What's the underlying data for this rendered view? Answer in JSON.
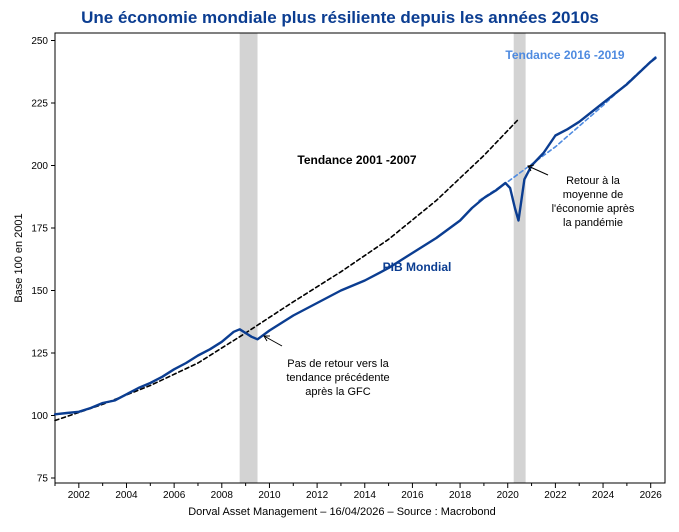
{
  "chart_data": {
    "type": "line",
    "title": "Une économie mondiale plus résiliente depuis les années 2010s",
    "xlabel": "",
    "ylabel": "Base 100 en 2001",
    "xlim": [
      2001,
      2026.6
    ],
    "ylim": [
      73,
      253
    ],
    "yticks": [
      75,
      100,
      125,
      150,
      175,
      200,
      225,
      250
    ],
    "xticks": [
      2002,
      2004,
      2006,
      2008,
      2010,
      2012,
      2014,
      2016,
      2018,
      2020,
      2022,
      2024,
      2026
    ],
    "shaded_periods": [
      [
        2008.75,
        2009.5
      ],
      [
        2020.25,
        2020.75
      ]
    ],
    "series": [
      {
        "name": "PIB Mondial",
        "color": "#0b3d91",
        "style": "solid",
        "x": [
          2001,
          2001.5,
          2002,
          2002.5,
          2003,
          2003.5,
          2004,
          2004.5,
          2005,
          2005.5,
          2006,
          2006.5,
          2007,
          2007.5,
          2008,
          2008.5,
          2008.75,
          2009,
          2009.25,
          2009.5,
          2010,
          2010.5,
          2011,
          2012,
          2013,
          2014,
          2015,
          2016,
          2017,
          2018,
          2018.5,
          2019,
          2019.5,
          2019.9,
          2020.1,
          2020.3,
          2020.45,
          2020.7,
          2021,
          2021.5,
          2022,
          2022.5,
          2023,
          2024,
          2025,
          2026,
          2026.2
        ],
        "values": [
          100.5,
          101,
          101.5,
          103,
          105,
          106,
          108.5,
          111,
          113,
          115.5,
          118.5,
          121,
          124,
          126.5,
          129.5,
          133.5,
          134.5,
          133,
          131.5,
          130.5,
          134,
          137,
          140,
          145,
          150,
          154,
          159,
          165,
          171,
          178,
          183,
          187,
          190,
          193,
          191,
          183,
          178,
          194.5,
          200,
          205,
          212,
          214.5,
          217.5,
          225,
          232.5,
          241.5,
          243
        ]
      },
      {
        "name": "Tendance 2001 -2007",
        "color": "#000000",
        "style": "dashed",
        "x": [
          2001,
          2003,
          2005,
          2007,
          2009,
          2011,
          2013,
          2015,
          2017,
          2019,
          2020.4
        ],
        "values": [
          98,
          104.5,
          112,
          121,
          133,
          145.5,
          157.5,
          170.5,
          186,
          204,
          218
        ]
      },
      {
        "name": "Tendance 2016 -2019",
        "color": "#4f8be0",
        "style": "dashed",
        "x": [
          2018.8,
          2020,
          2022,
          2024,
          2026.2
        ],
        "values": [
          186,
          193.5,
          207.5,
          224,
          243.5
        ]
      }
    ],
    "annotations": [
      {
        "name": "label-tendance-2001",
        "text": "Tendance 2001 -2007",
        "color": "#000000"
      },
      {
        "name": "label-pib",
        "text": "PIB Mondial",
        "color": "#0b3d91"
      },
      {
        "name": "label-tendance-2016",
        "text": "Tendance 2016 -2019",
        "color": "#4f8be0"
      },
      {
        "name": "note-gfc",
        "lines": [
          "Pas de retour vers la",
          "tendance précédente",
          "après la GFC"
        ]
      },
      {
        "name": "note-pandemie",
        "lines": [
          "Retour à la",
          "moyenne de",
          "l'économie après",
          "la pandémie"
        ]
      }
    ]
  },
  "footer": "Dorval Asset Management – 16/04/2026   –   Source : Macrobond"
}
